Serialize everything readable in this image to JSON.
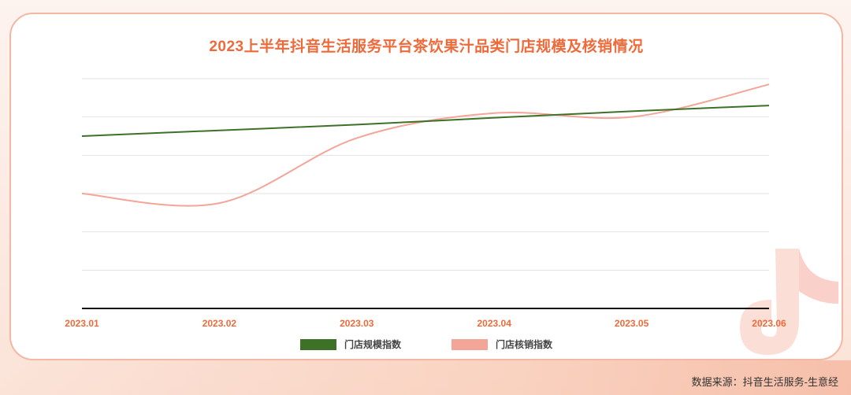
{
  "chart_data": {
    "type": "line",
    "title": "2023上半年抖音生活服务平台茶饮果汁品类门店规模及核销情况",
    "categories": [
      "2023.01",
      "2023.02",
      "2023.03",
      "2023.04",
      "2023.05",
      "2023.06"
    ],
    "xlabel": "",
    "ylabel": "",
    "ylim": [
      0,
      6
    ],
    "grid": true,
    "legend_position": "bottom",
    "series": [
      {
        "name": "门店规模指数",
        "color": "#3d7127",
        "values": [
          4.5,
          4.65,
          4.8,
          4.98,
          5.15,
          5.3
        ]
      },
      {
        "name": "门店核销指数",
        "color": "#f3a597",
        "values": [
          3.0,
          2.75,
          4.45,
          5.1,
          5.0,
          5.85
        ]
      }
    ]
  },
  "source": "数据来源：抖音生活服务-生意经"
}
